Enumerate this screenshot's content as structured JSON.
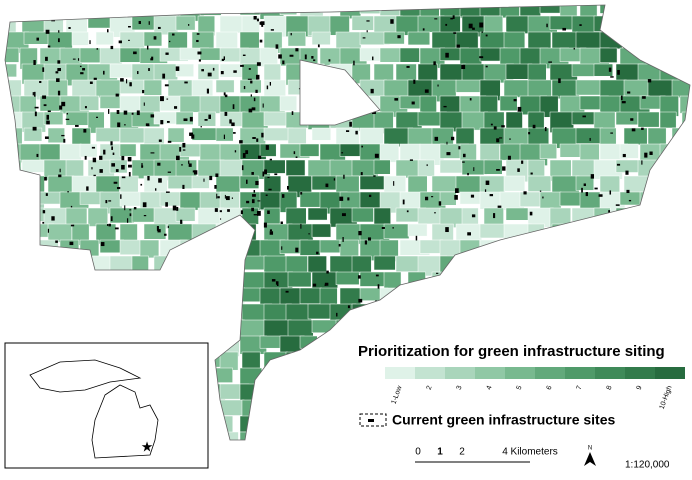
{
  "legend": {
    "title": "Prioritization for green infrastructure siting",
    "classes": [
      {
        "label": "1-Low",
        "color": "#dff2e8"
      },
      {
        "label": "2",
        "color": "#c3e3d1"
      },
      {
        "label": "3",
        "color": "#a9d5bb"
      },
      {
        "label": "4",
        "color": "#90c8a5"
      },
      {
        "label": "5",
        "color": "#78b98f"
      },
      {
        "label": "6",
        "color": "#62a97b"
      },
      {
        "label": "7",
        "color": "#4f9a69"
      },
      {
        "label": "8",
        "color": "#3f8a59"
      },
      {
        "label": "9",
        "color": "#327b4b"
      },
      {
        "label": "10-High",
        "color": "#276c3f"
      }
    ],
    "sites_label": "Current green infrastructure sites"
  },
  "scale_bar": {
    "labels": [
      "0",
      "1",
      "2",
      "4 Kilometers"
    ],
    "north": "N",
    "ratio": "1:120,000"
  }
}
